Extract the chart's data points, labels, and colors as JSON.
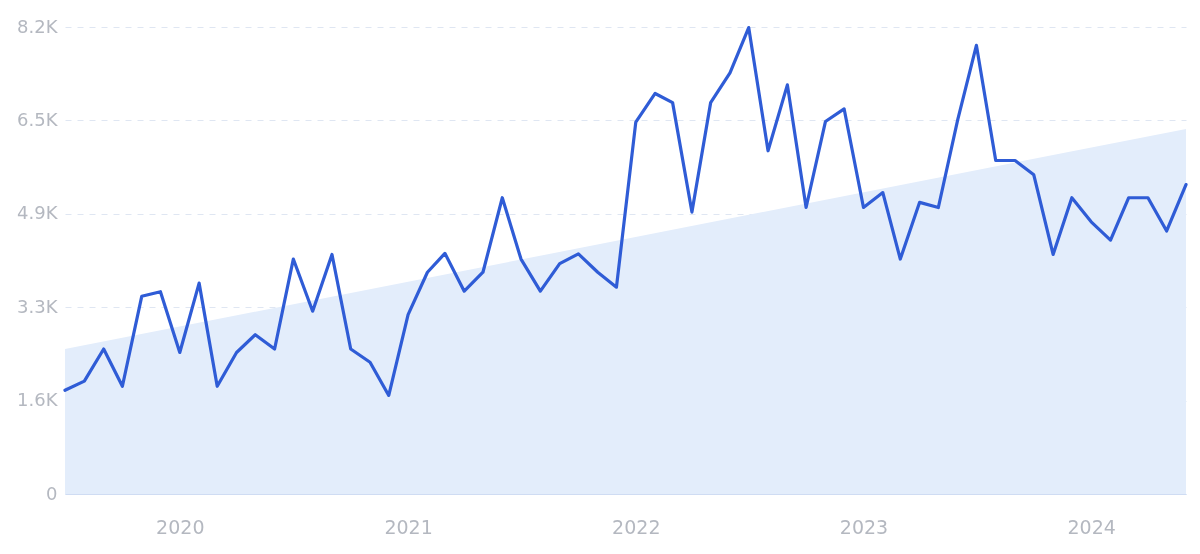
{
  "chart_data": {
    "type": "line",
    "x": [
      "2019-07",
      "2019-08",
      "2019-09",
      "2019-10",
      "2019-11",
      "2019-12",
      "2020-01",
      "2020-02",
      "2020-03",
      "2020-04",
      "2020-05",
      "2020-06",
      "2020-07",
      "2020-08",
      "2020-09",
      "2020-10",
      "2020-11",
      "2020-12",
      "2021-01",
      "2021-02",
      "2021-03",
      "2021-04",
      "2021-05",
      "2021-06",
      "2021-07",
      "2021-08",
      "2021-09",
      "2021-10",
      "2021-11",
      "2021-12",
      "2022-01",
      "2022-02",
      "2022-03",
      "2022-04",
      "2022-05",
      "2022-06",
      "2022-07",
      "2022-08",
      "2022-09",
      "2022-10",
      "2022-11",
      "2022-12",
      "2023-01",
      "2023-02",
      "2023-03",
      "2023-04",
      "2023-05",
      "2023-06",
      "2023-07",
      "2023-08",
      "2023-09",
      "2023-10",
      "2023-11",
      "2023-12",
      "2024-01",
      "2024-02",
      "2024-03",
      "2024-04",
      "2024-05",
      "2024-06"
    ],
    "series": [
      {
        "type": "area",
        "color": "#e3edfb",
        "x": [
          "2019-07",
          "2024-06"
        ],
        "values": [
          2530,
          6370
        ]
      },
      {
        "color": "#2f5cd6",
        "values": [
          1810,
          1970,
          2530,
          1880,
          3450,
          3530,
          2470,
          3680,
          1880,
          2470,
          2780,
          2530,
          4100,
          3190,
          4180,
          2530,
          2300,
          1720,
          3130,
          3870,
          4200,
          3540,
          3870,
          5170,
          4100,
          3540,
          4020,
          4190,
          3870,
          3610,
          6490,
          6990,
          6830,
          4920,
          6830,
          7350,
          8140,
          5990,
          7140,
          5000,
          6500,
          6720,
          5000,
          5260,
          4100,
          5090,
          5000,
          6530,
          7830,
          5820,
          5820,
          5570,
          4180,
          5170,
          4750,
          4430,
          5170,
          5170,
          4590,
          5400
        ]
      }
    ],
    "xlim": [
      "2019-07",
      "2024-06"
    ],
    "xticks": [
      {
        "value": "2020-01",
        "label": "2020"
      },
      {
        "value": "2021-01",
        "label": "2021"
      },
      {
        "value": "2022-01",
        "label": "2022"
      },
      {
        "value": "2023-01",
        "label": "2023"
      },
      {
        "value": "2024-01",
        "label": "2024"
      }
    ],
    "ylim": [
      0,
      8150
    ],
    "yticks": [
      0,
      {
        "value": 1630,
        "label": "1.6K"
      },
      {
        "value": 3260,
        "label": "3.3K"
      },
      {
        "value": 4890,
        "label": "4.9K"
      },
      {
        "value": 6520,
        "label": "6.5K"
      },
      {
        "value": 8150,
        "label": "8.2K"
      }
    ],
    "grid": "y"
  }
}
